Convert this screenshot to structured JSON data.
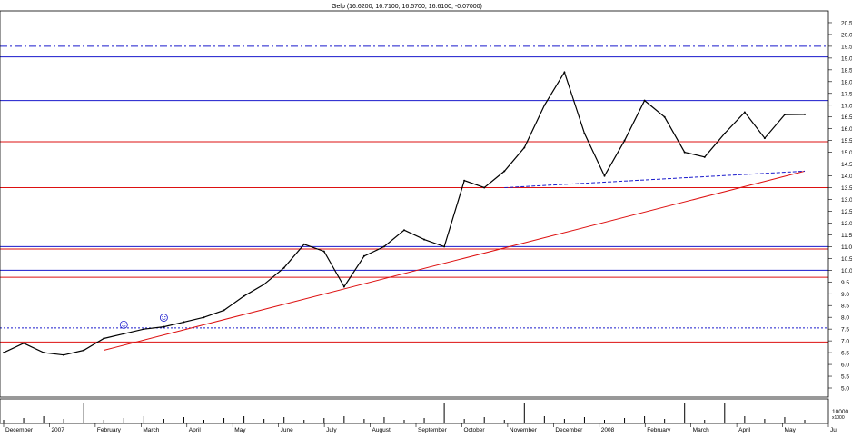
{
  "chart_data": {
    "type": "candlestick",
    "title": "Gelp (16.6200, 16.7100, 16.5700, 16.6100, -0.07000)",
    "xlabel": "",
    "ylabel": "",
    "ylim": [
      5.0,
      21.0
    ],
    "y_ticks": [
      "5.0",
      "5.5",
      "6.0",
      "6.5",
      "7.0",
      "7.5",
      "8.0",
      "8.5",
      "9.0",
      "9.5",
      "10.0",
      "10.5",
      "11.0",
      "11.5",
      "12.0",
      "12.5",
      "13.0",
      "13.5",
      "14.0",
      "14.5",
      "15.0",
      "15.5",
      "16.0",
      "16.5",
      "17.0",
      "17.5",
      "18.0",
      "18.5",
      "19.0",
      "19.5",
      "20.0",
      "20.5"
    ],
    "x_ticks": [
      "December",
      "2007",
      "February",
      "March",
      "April",
      "May",
      "June",
      "July",
      "August",
      "September",
      "October",
      "November",
      "December",
      "2008",
      "February",
      "March",
      "April",
      "May",
      "Ju"
    ],
    "grid": false,
    "price_series": {
      "x": [
        "Dec 2006",
        "mid Dec 2006",
        "Jan 2007",
        "mid Jan 2007",
        "Feb 2007",
        "mid Feb 2007",
        "Mar 2007",
        "mid Mar 2007",
        "Apr 2007",
        "mid Apr 2007",
        "May 2007",
        "mid May 2007",
        "Jun 2007",
        "mid Jun 2007",
        "Jul 2007",
        "mid Jul 2007",
        "Aug 2007",
        "mid Aug 2007",
        "Sep 2007",
        "mid Sep 2007",
        "Oct 2007",
        "mid Oct 2007",
        "Nov 2007",
        "early Nov 2007",
        "mid Nov 2007",
        "late Nov 2007",
        "Dec 2007",
        "mid Dec 2007",
        "late Dec 2007",
        "Jan 2008",
        "mid Jan 2008",
        "late Jan 2008",
        "Feb 2008",
        "mid Feb 2008",
        "Mar 2008",
        "mid Mar 2008",
        "Apr 2008",
        "mid Apr 2008",
        "May 2008",
        "mid May 2008",
        "late May 2008"
      ],
      "close": [
        6.5,
        6.9,
        6.5,
        6.4,
        6.6,
        7.1,
        7.3,
        7.5,
        7.6,
        7.8,
        8.0,
        8.3,
        8.9,
        9.4,
        10.1,
        11.1,
        10.8,
        9.3,
        10.6,
        11.0,
        11.7,
        11.3,
        11.0,
        13.8,
        13.5,
        14.2,
        15.2,
        17.0,
        18.4,
        15.8,
        14.0,
        15.5,
        17.2,
        16.5,
        15.0,
        14.8,
        15.8,
        16.7,
        15.6,
        16.6,
        16.61
      ]
    },
    "volume": {
      "label": "10000",
      "unit": "x1000",
      "spike_positions": [
        "Feb 2007",
        "Nov 2007",
        "Dec 2007",
        "Mar 2008",
        "Apr 2008"
      ]
    },
    "horizontal_levels": [
      {
        "value": 19.5,
        "color": "#1a1acc",
        "style": "dashdot"
      },
      {
        "value": 19.05,
        "color": "#1a1acc",
        "style": "solid"
      },
      {
        "value": 17.2,
        "color": "#1a1acc",
        "style": "solid"
      },
      {
        "value": 15.45,
        "color": "#dd1111",
        "style": "solid"
      },
      {
        "value": 13.5,
        "color": "#dd1111",
        "style": "solid"
      },
      {
        "value": 11.0,
        "color": "#1a1acc",
        "style": "solid"
      },
      {
        "value": 10.9,
        "color": "#dd1111",
        "style": "solid"
      },
      {
        "value": 10.0,
        "color": "#1a1acc",
        "style": "solid"
      },
      {
        "value": 9.7,
        "color": "#dd1111",
        "style": "solid"
      },
      {
        "value": 7.55,
        "color": "#1a1acc",
        "style": "dotted"
      },
      {
        "value": 6.95,
        "color": "#dd1111",
        "style": "solid"
      }
    ],
    "trendlines": [
      {
        "from": [
          "mid Feb 2007",
          6.6
        ],
        "to": [
          "late May 2008",
          14.2
        ],
        "color": "#dd1111"
      },
      {
        "from": [
          "late Nov 2007",
          13.5
        ],
        "to": [
          "late May 2008",
          14.2
        ],
        "color": "#1a1acc",
        "style": "dashed"
      }
    ],
    "annotations": [
      {
        "type": "smiley-icon",
        "at": "Mar 2007"
      },
      {
        "type": "smiley-icon",
        "at": "Apr 2007"
      }
    ],
    "colors": {
      "red_line": "#dd1111",
      "blue_line": "#1a1acc",
      "price": "#000000"
    }
  }
}
